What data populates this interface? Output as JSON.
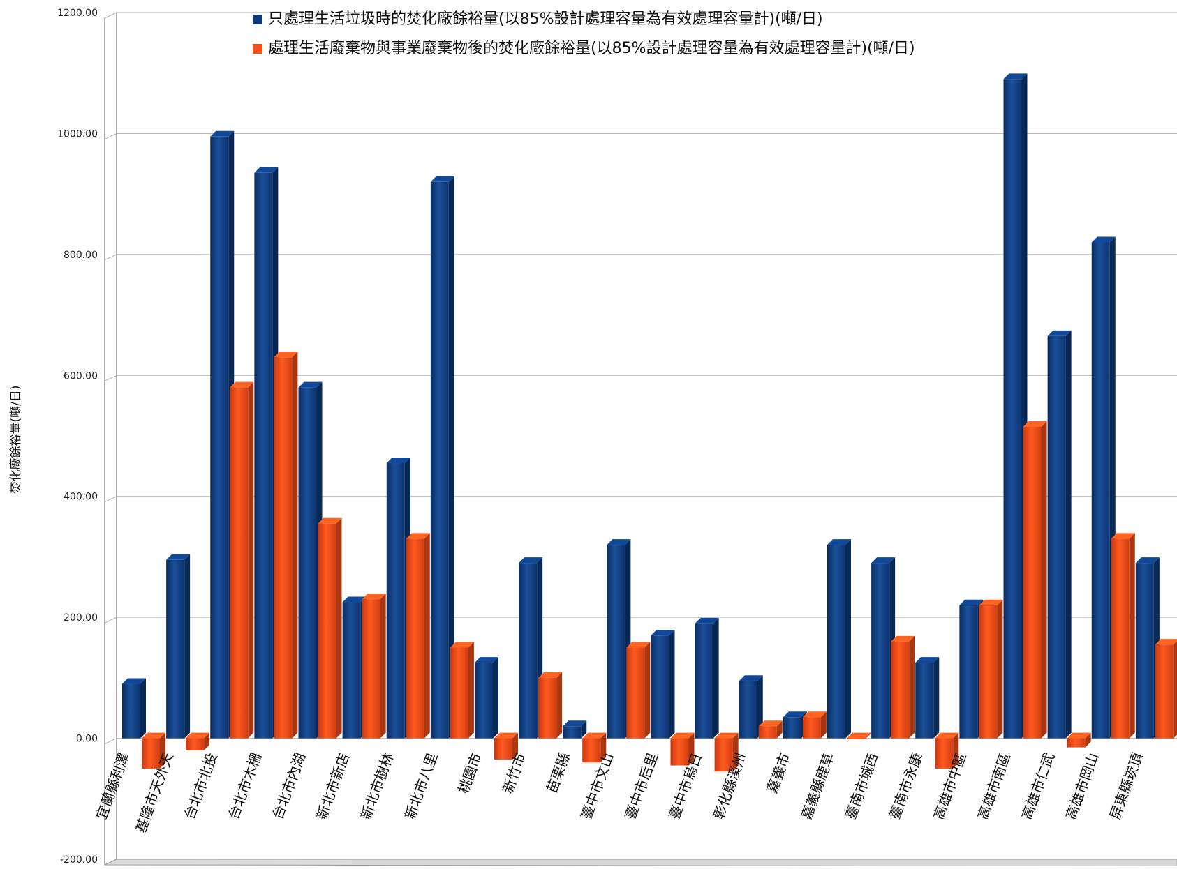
{
  "chart_data": {
    "type": "bar",
    "ylabel": "焚化廠餘裕量(噸/日)",
    "ylim": [
      -200,
      1200
    ],
    "yticks": [
      "1200.00",
      "1000.00",
      "800.00",
      "600.00",
      "400.00",
      "200.00",
      "0.00",
      "-200.00"
    ],
    "grid": true,
    "legend_position": "top",
    "categories": [
      "宜蘭縣利澤",
      "基隆市天外天",
      "台北市北投",
      "台北市木柵",
      "台北市內湖",
      "新北市新店",
      "新北市樹林",
      "新北市八里",
      "桃園市",
      "新竹市",
      "苗栗縣",
      "臺中市文山",
      "臺中市后里",
      "臺中市烏日",
      "彰化縣溪州",
      "嘉義市",
      "嘉義縣鹿草",
      "臺南市城西",
      "臺南市永康",
      "高雄市中區",
      "高雄市南區",
      "高雄市仁武",
      "高雄市岡山",
      "屏東縣崁頂"
    ],
    "series": [
      {
        "name": "只處理生活垃圾時的焚化廠餘裕量(以85%設計處理容量為有效處理容量計)(噸/日)",
        "color": "#0d3a7a",
        "values": [
          90,
          295,
          995,
          935,
          580,
          225,
          455,
          920,
          125,
          290,
          20,
          320,
          170,
          190,
          95,
          35,
          320,
          290,
          125,
          220,
          1090,
          665,
          820,
          290
        ]
      },
      {
        "name": "處理生活廢棄物與事業廢棄物後的焚化廠餘裕量(以85%設計處理容量為有效處理容量計)(噸/日)",
        "color": "#f2501a",
        "values": [
          -50,
          -20,
          580,
          630,
          355,
          230,
          330,
          150,
          -35,
          100,
          -40,
          150,
          -45,
          -55,
          20,
          35,
          0,
          160,
          -50,
          220,
          515,
          -15,
          330,
          155
        ]
      }
    ]
  }
}
